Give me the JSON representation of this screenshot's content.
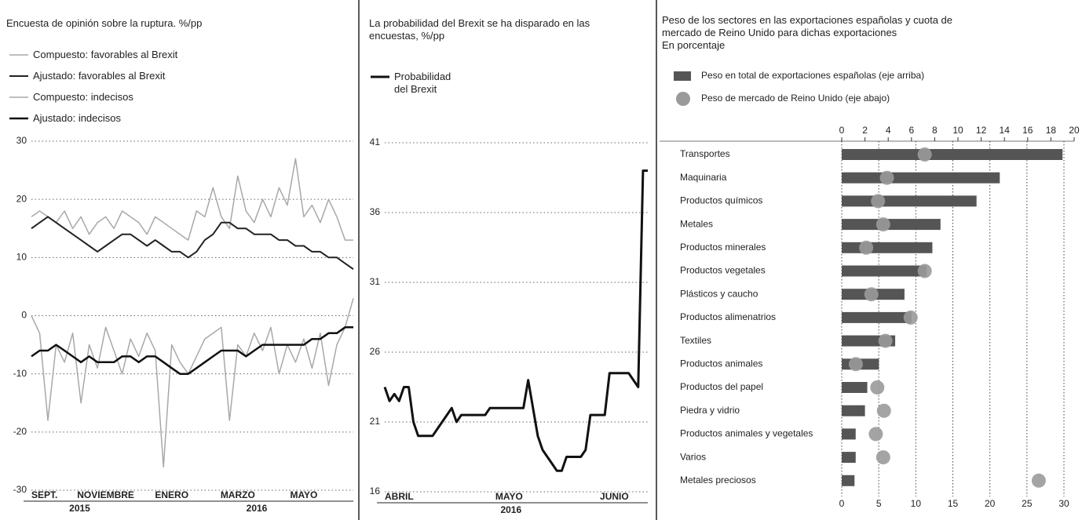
{
  "chart_data": [
    {
      "type": "line",
      "title": "Encuesta de opinión sobre la ruptura. %/pp",
      "categories": [
        "SEPT.",
        null,
        null,
        null,
        null,
        null,
        null,
        null,
        null,
        "NOVIEMBRE",
        null,
        null,
        null,
        null,
        null,
        null,
        null,
        "ENERO",
        null,
        null,
        null,
        null,
        null,
        null,
        null,
        "MARZO",
        null,
        null,
        null,
        null,
        null,
        null,
        null,
        "MAYO",
        null,
        null,
        null,
        null,
        null,
        null
      ],
      "year_labels": [
        "2015",
        "2016"
      ],
      "ylim": [
        -30,
        30
      ],
      "yticks": [
        -30,
        -20,
        -10,
        0,
        10,
        20,
        30
      ],
      "grid": true,
      "series": [
        {
          "name": "Compuesto: favorables al Brexit",
          "color": "#a8a8a8",
          "values": [
            17,
            18,
            17,
            16,
            18,
            15,
            17,
            14,
            16,
            17,
            15,
            18,
            17,
            16,
            14,
            17,
            16,
            15,
            14,
            13,
            18,
            17,
            22,
            17,
            15,
            24,
            18,
            16,
            20,
            17,
            22,
            19,
            27,
            17,
            19,
            16,
            20,
            17,
            13,
            13
          ]
        },
        {
          "name": "Ajustado: favorables al Brexit",
          "color": "#222222",
          "values": [
            15,
            16,
            17,
            16,
            15,
            14,
            13,
            12,
            11,
            12,
            13,
            14,
            14,
            13,
            12,
            13,
            12,
            11,
            11,
            10,
            11,
            13,
            14,
            16,
            16,
            15,
            15,
            14,
            14,
            14,
            13,
            13,
            12,
            12,
            11,
            11,
            10,
            10,
            9,
            8
          ]
        },
        {
          "name": "Compuesto: indecisos",
          "color": "#a8a8a8",
          "values": [
            0,
            -3,
            -18,
            -5,
            -8,
            -3,
            -15,
            -5,
            -9,
            -2,
            -6,
            -10,
            -4,
            -7,
            -3,
            -6,
            -26,
            -5,
            -8,
            -10,
            -7,
            -4,
            -3,
            -2,
            -18,
            -5,
            -7,
            -3,
            -6,
            -2,
            -10,
            -5,
            -8,
            -4,
            -9,
            -3,
            -12,
            -5,
            -2,
            3
          ]
        },
        {
          "name": "Ajustado: indecisos",
          "color": "#111111",
          "values": [
            -7,
            -6,
            -6,
            -5,
            -6,
            -7,
            -8,
            -7,
            -8,
            -8,
            -8,
            -7,
            -7,
            -8,
            -7,
            -7,
            -8,
            -9,
            -10,
            -10,
            -9,
            -8,
            -7,
            -6,
            -6,
            -6,
            -7,
            -6,
            -5,
            -5,
            -5,
            -5,
            -5,
            -5,
            -4,
            -4,
            -3,
            -3,
            -2,
            -2
          ]
        }
      ]
    },
    {
      "type": "line",
      "title": "La probabilidad del Brexit se ha disparado en las encuestas, %/pp",
      "categories": [
        "ABRIL",
        null,
        null,
        null,
        null,
        null,
        null,
        null,
        null,
        null,
        null,
        null,
        null,
        null,
        null,
        null,
        null,
        null,
        null,
        null,
        null,
        null,
        null,
        null,
        null,
        null,
        "MAYO",
        null,
        null,
        null,
        null,
        null,
        null,
        null,
        null,
        null,
        null,
        null,
        null,
        null,
        null,
        null,
        null,
        null,
        null,
        null,
        null,
        null,
        "JUNIO",
        null,
        null,
        null,
        null,
        null,
        null,
        null
      ],
      "year_labels": [
        "2016"
      ],
      "ylim": [
        16,
        41
      ],
      "yticks": [
        16,
        21,
        26,
        31,
        36,
        41
      ],
      "grid": true,
      "series": [
        {
          "name": "Probabilidad del Brexit",
          "color": "#111111",
          "values": [
            23.5,
            22.5,
            23,
            22.5,
            23.5,
            23.5,
            21,
            20,
            20,
            20,
            20,
            20.5,
            21,
            21.5,
            22,
            21,
            21.5,
            21.5,
            21.5,
            21.5,
            21.5,
            21.5,
            22,
            22,
            22,
            22,
            22,
            22,
            22,
            22,
            24,
            22,
            20,
            19,
            18.5,
            18,
            17.5,
            17.5,
            18.5,
            18.5,
            18.5,
            18.5,
            19,
            21.5,
            21.5,
            21.5,
            21.5,
            24.5,
            24.5,
            24.5,
            24.5,
            24.5,
            24,
            23.5,
            39,
            39
          ]
        }
      ]
    },
    {
      "type": "bar",
      "title": "Peso de los sectores en las exportaciones españolas y cuota de mercado de Reino Unido para dichas exportaciones",
      "subtitle": "En porcentaje",
      "categories": [
        "Transportes",
        "Maquinaria",
        "Productos químicos",
        "Metales",
        "Productos minerales",
        "Productos vegetales",
        "Plásticos y caucho",
        "Productos alimenatrios",
        "Textiles",
        "Productos animales",
        "Productos del papel",
        "Piedra y vidrio",
        "Productos  animales y vegetales",
        "Varios",
        "Metales preciosos"
      ],
      "xlim": [
        0,
        20
      ],
      "xticks": [
        0,
        2,
        4,
        6,
        8,
        10,
        12,
        14,
        16,
        18,
        20
      ],
      "x2lim": [
        0,
        30
      ],
      "x2ticks": [
        0,
        5,
        10,
        15,
        20,
        25,
        30
      ],
      "grid": true,
      "series": [
        {
          "name": "Peso en total de exportaciones españolas (eje arriba)",
          "color": "#555555",
          "values": [
            19,
            13.6,
            11.6,
            8.5,
            7.8,
            7.3,
            5.4,
            6,
            4.6,
            3.2,
            2.2,
            2,
            1.2,
            1.2,
            1.1
          ]
        },
        {
          "name": "Peso de mercado de Reino Unido (eje abajo)",
          "color": "#9a9a9a",
          "axis": "x2",
          "values": [
            11.2,
            6.1,
            4.9,
            5.6,
            3.3,
            11.2,
            4,
            9.3,
            5.9,
            1.9,
            4.8,
            5.7,
            4.6,
            5.6,
            26.6
          ]
        }
      ]
    }
  ]
}
